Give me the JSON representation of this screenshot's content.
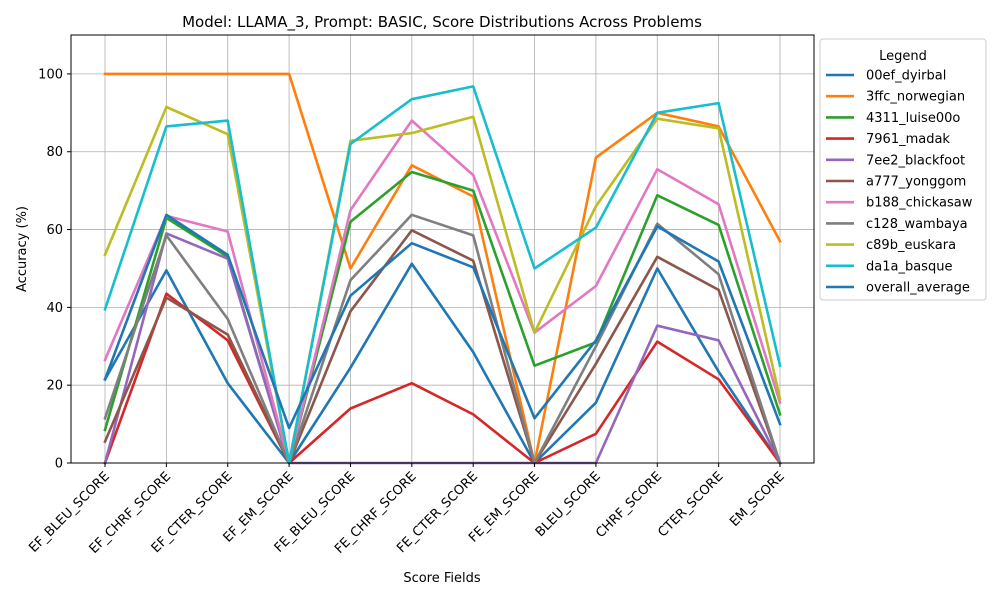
{
  "chart_data": {
    "type": "line",
    "title": "Model: LLAMA_3, Prompt: BASIC, Score Distributions Across Problems",
    "xlabel": "Score Fields",
    "ylabel": "Accuracy (%)",
    "ylim": [
      0,
      110
    ],
    "yticks": [
      0,
      20,
      40,
      60,
      80,
      100
    ],
    "grid": true,
    "legend": {
      "title": "Legend",
      "placement": "outside-right"
    },
    "categories": [
      "EF_BLEU_SCORE",
      "EF_CHRF_SCORE",
      "EF_CTER_SCORE",
      "EF_EM_SCORE",
      "FE_BLEU_SCORE",
      "FE_CHRF_SCORE",
      "FE_CTER_SCORE",
      "FE_EM_SCORE",
      "BLEU_SCORE",
      "CHRF_SCORE",
      "CTER_SCORE",
      "EM_SCORE"
    ],
    "series": [
      {
        "name": "00ef_dyirbal",
        "color": "#1f77b4",
        "values": [
          21.5,
          49.5,
          20.5,
          0,
          24.5,
          51.2,
          28.5,
          0,
          15.5,
          50,
          23.5,
          0
        ]
      },
      {
        "name": "3ffc_norwegian",
        "color": "#ff7f0e",
        "values": [
          100,
          100,
          100,
          100,
          50,
          76.5,
          68.5,
          0,
          78.5,
          90,
          86.5,
          57
        ]
      },
      {
        "name": "4311_luise00o",
        "color": "#2ca02c",
        "values": [
          8.5,
          63,
          53,
          0,
          62,
          74.8,
          70,
          25,
          31,
          68.8,
          61.2,
          12.5
        ]
      },
      {
        "name": "7961_madak",
        "color": "#d62728",
        "values": [
          0,
          43.5,
          31.5,
          0,
          14,
          20.5,
          12.5,
          0,
          7.5,
          31.2,
          21.5,
          0
        ]
      },
      {
        "name": "7ee2_blackfoot",
        "color": "#9467bd",
        "values": [
          0,
          59,
          52.5,
          0,
          0,
          0,
          0,
          0,
          0,
          35.3,
          31.5,
          0
        ]
      },
      {
        "name": "a777_yonggom",
        "color": "#8c564b",
        "values": [
          5.5,
          42.5,
          33,
          0,
          39,
          59.8,
          52,
          0,
          25.5,
          53,
          44.5,
          0
        ]
      },
      {
        "name": "b188_chickasaw",
        "color": "#e377c2",
        "values": [
          26.5,
          63.5,
          59.5,
          0,
          65,
          88,
          74,
          33.5,
          45.5,
          75.5,
          66.5,
          15.5
        ]
      },
      {
        "name": "c128_wambaya",
        "color": "#7f7f7f",
        "values": [
          11.5,
          58.5,
          37,
          0,
          47,
          63.8,
          58.5,
          0,
          30,
          61.5,
          48.5,
          0
        ]
      },
      {
        "name": "c89b_euskara",
        "color": "#bcbd22",
        "values": [
          53.5,
          91.5,
          84.5,
          0,
          82.8,
          84.8,
          89,
          33.5,
          66,
          88.5,
          86,
          16.5
        ]
      },
      {
        "name": "da1a_basque",
        "color": "#17becf",
        "values": [
          39.5,
          86.5,
          88,
          0,
          82,
          93.5,
          96.8,
          50,
          60.5,
          90,
          92.5,
          25
        ]
      },
      {
        "name": "overall_average",
        "color": "#1f77b4",
        "values": [
          21.5,
          63.8,
          53.5,
          9,
          43,
          56.5,
          50.3,
          11.5,
          31.5,
          60.8,
          51.8,
          10
        ]
      }
    ]
  }
}
